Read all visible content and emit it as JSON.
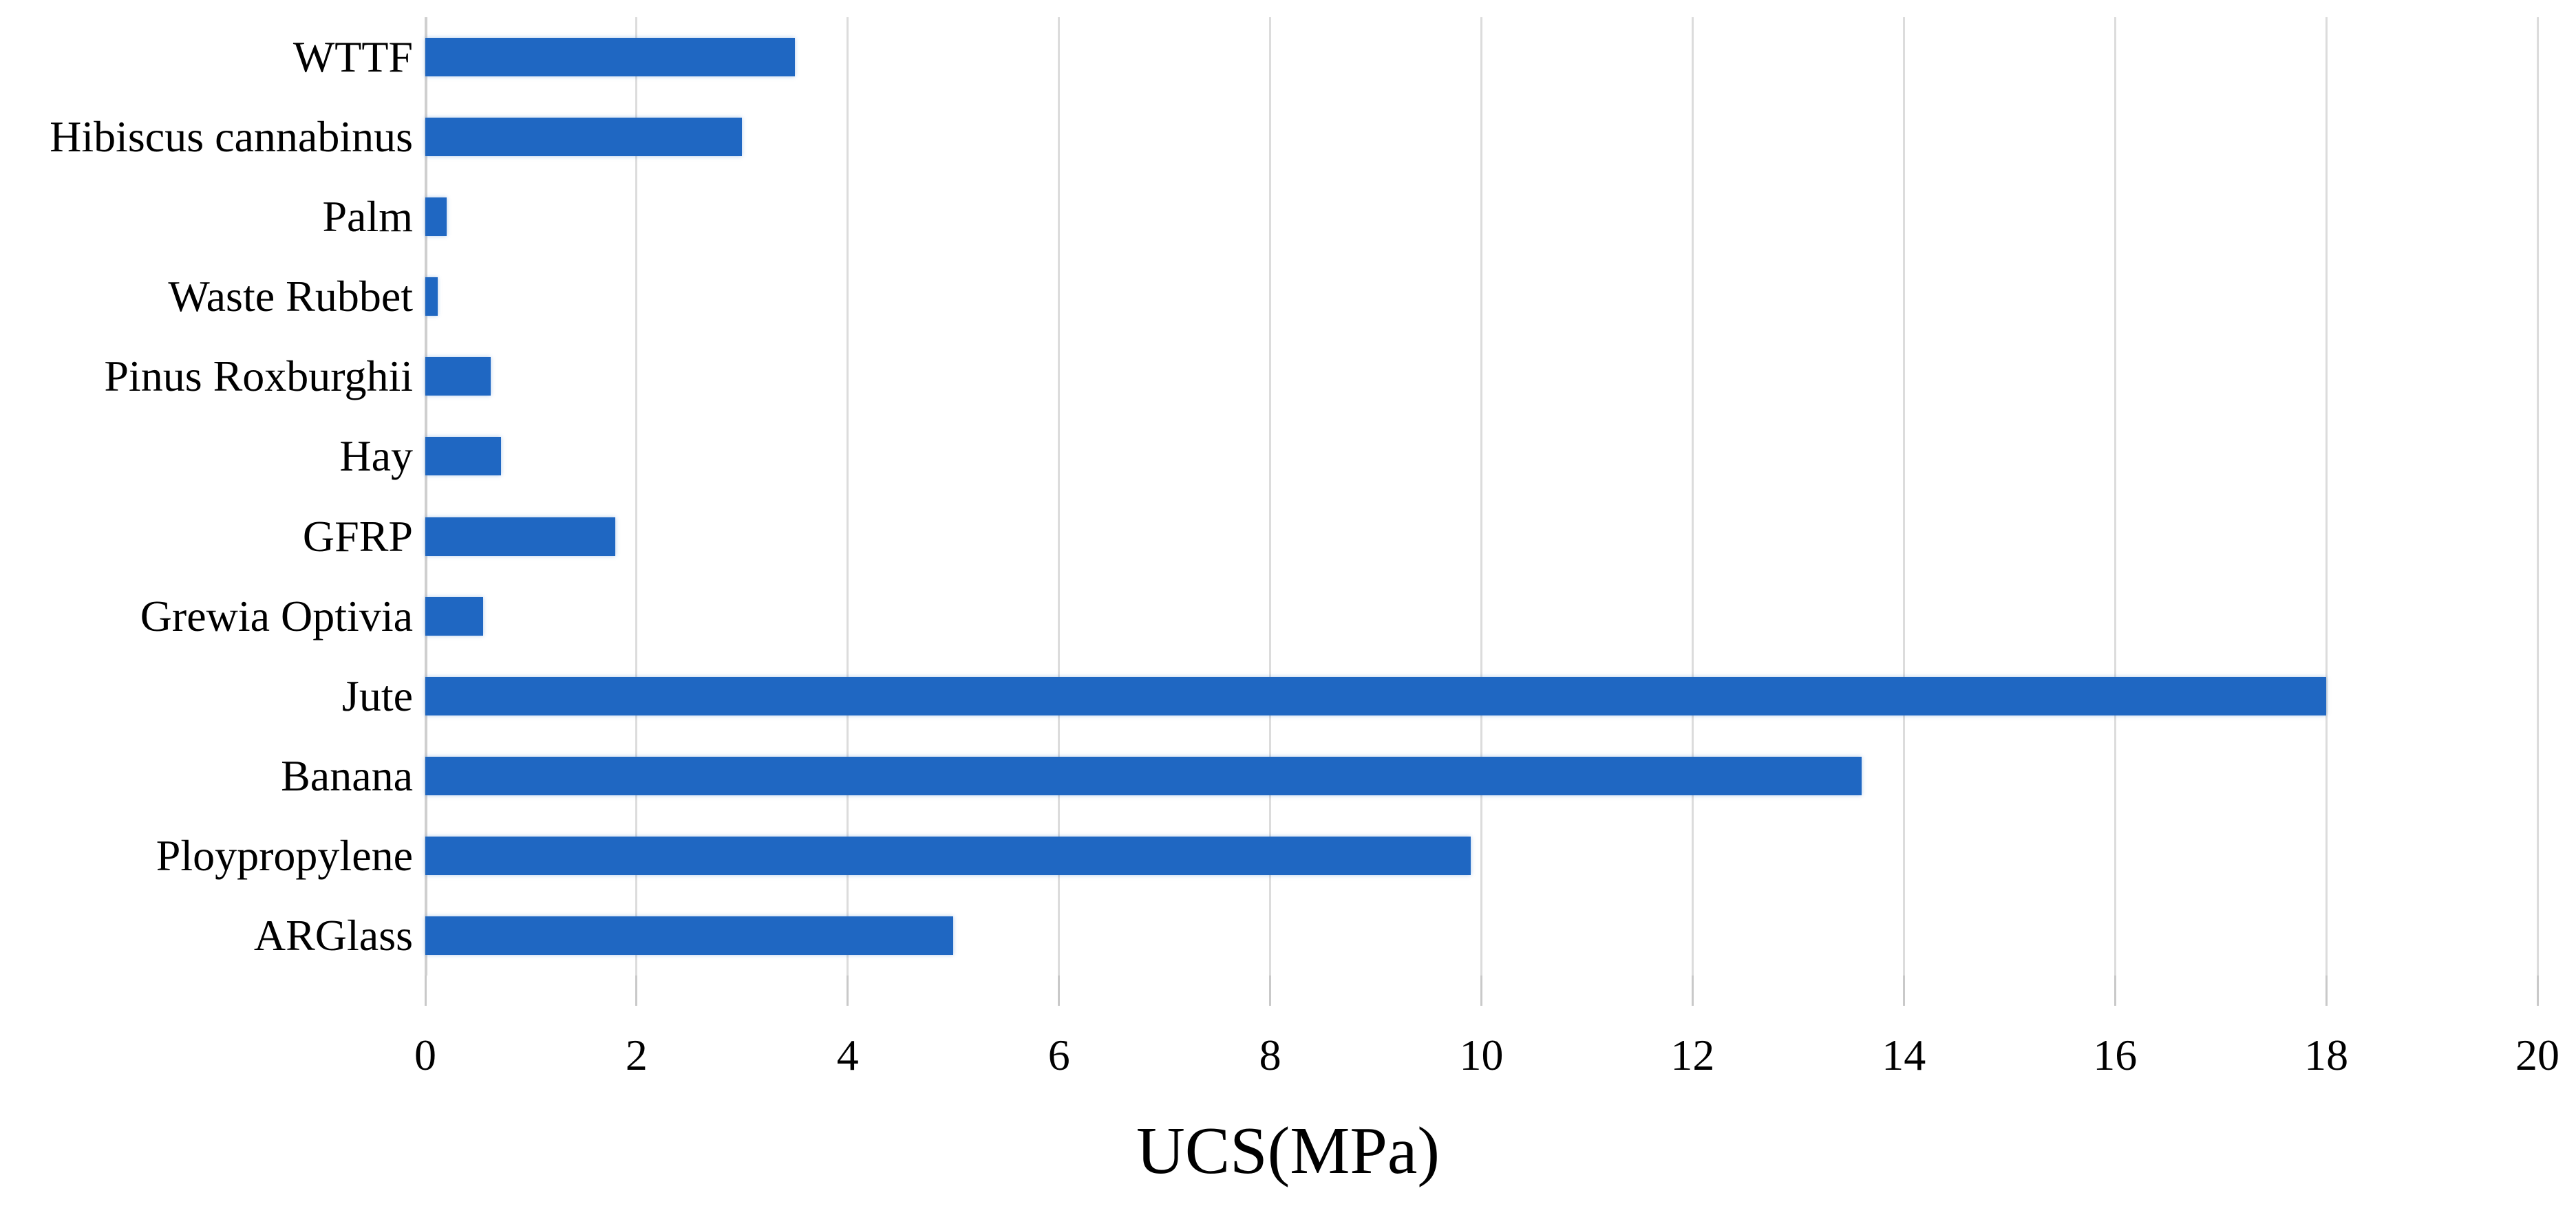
{
  "figure": {
    "background": "#ffffff",
    "bar_color": "#1f67c2",
    "gridline_color": "#dcdcdc",
    "axis_line_color": "#cfcfcf",
    "tick_mark_color": "#c9c9c9",
    "text_color": "#000000"
  },
  "chart_data": {
    "type": "bar",
    "orientation": "horizontal",
    "title": "",
    "xlabel": "UCS(MPa)",
    "ylabel": "",
    "unit": "MPa",
    "xlim": [
      0,
      20
    ],
    "x_ticks": [
      0,
      2,
      4,
      6,
      8,
      10,
      12,
      14,
      16,
      18,
      20
    ],
    "grid": "vertical-gridlines-on",
    "legend": "none",
    "categories": [
      "WTTF",
      "Hibiscus cannabinus",
      "Palm",
      "Waste Rubbet",
      "Pinus Roxburghii",
      "Hay",
      "GFRP",
      "Grewia Optivia",
      "Jute",
      "Banana",
      "Ploypropylene",
      "ARGlass"
    ],
    "values": [
      3.5,
      3.0,
      0.2,
      0.12,
      0.62,
      0.72,
      1.8,
      0.55,
      18.0,
      13.6,
      9.9,
      5.0
    ]
  }
}
